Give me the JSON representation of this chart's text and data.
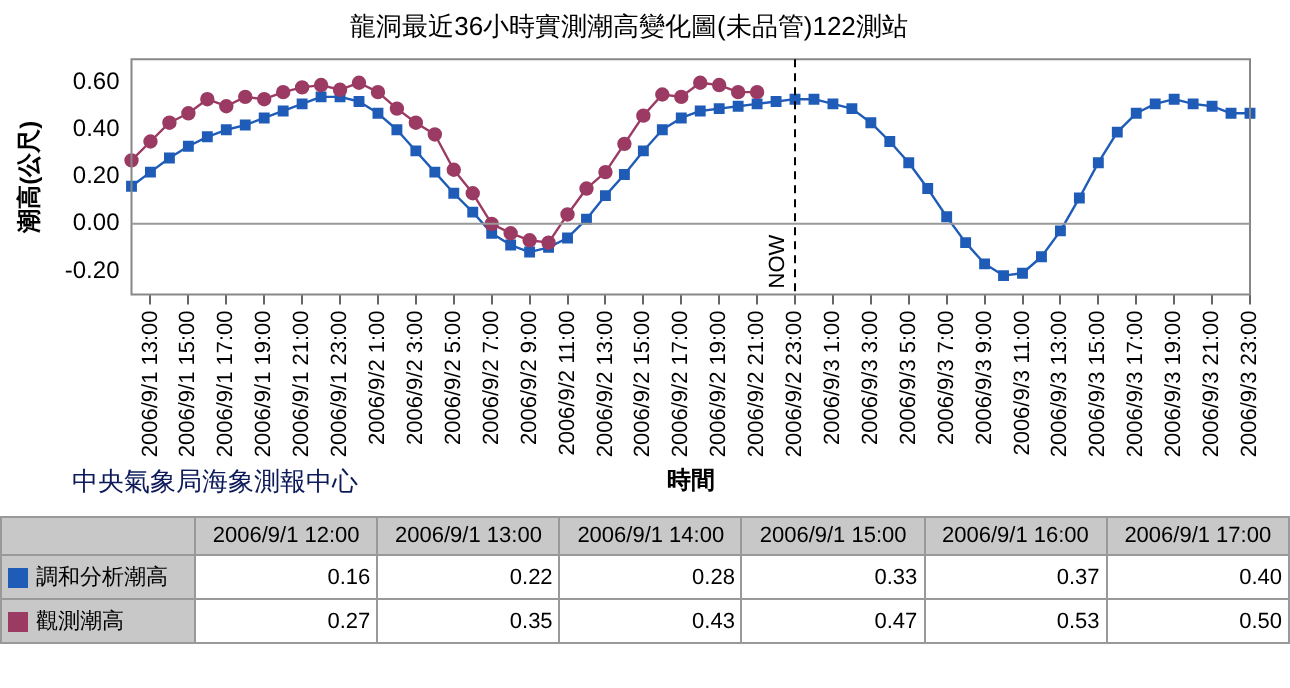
{
  "chart_data": [
    {
      "type": "line",
      "title": "龍洞最近36小時實測潮高變化圖(未品管)122測站",
      "xlabel": "時間",
      "ylabel": "潮高(公尺)",
      "annotations": [
        "中央氣象局海象測報中心"
      ],
      "categories": [
        null,
        "2006/9/1 13:00",
        null,
        "2006/9/1 15:00",
        null,
        "2006/9/1 17:00",
        null,
        "2006/9/1 19:00",
        null,
        "2006/9/1 21:00",
        null,
        "2006/9/1 23:00",
        null,
        "2006/9/2 1:00",
        null,
        "2006/9/2 3:00",
        null,
        "2006/9/2 5:00",
        null,
        "2006/9/2 7:00",
        null,
        "2006/9/2 9:00",
        null,
        "2006/9/2 11:00",
        null,
        "2006/9/2 13:00",
        null,
        "2006/9/2 15:00",
        null,
        "2006/9/2 17:00",
        null,
        "2006/9/2 19:00",
        null,
        "2006/9/2 21:00",
        null,
        "2006/9/2 23:00",
        null,
        "2006/9/3 1:00",
        null,
        "2006/9/3 3:00",
        null,
        "2006/9/3 5:00",
        null,
        "2006/9/3 7:00",
        null,
        "2006/9/3 9:00",
        null,
        "2006/9/3 11:00",
        null,
        "2006/9/3 13:00",
        null,
        "2006/9/3 15:00",
        null,
        "2006/9/3 17:00",
        null,
        "2006/9/3 19:00",
        null,
        "2006/9/3 21:00",
        null,
        "2006/9/3 23:00"
      ],
      "series": [
        {
          "name": "調和分析潮高",
          "color": "#1f5cb8",
          "marker": "square",
          "values": [
            0.16,
            0.22,
            0.28,
            0.33,
            0.37,
            0.4,
            0.42,
            0.45,
            0.48,
            0.51,
            0.54,
            0.54,
            0.52,
            0.47,
            0.4,
            0.31,
            0.22,
            0.13,
            0.05,
            -0.04,
            -0.09,
            -0.12,
            -0.1,
            -0.06,
            0.02,
            0.12,
            0.21,
            0.31,
            0.4,
            0.45,
            0.48,
            0.49,
            0.5,
            0.51,
            0.52,
            0.53,
            0.53,
            0.51,
            0.49,
            0.43,
            0.35,
            0.26,
            0.15,
            0.03,
            -0.08,
            -0.17,
            -0.22,
            -0.21,
            -0.14,
            -0.03,
            0.11,
            0.26,
            0.39,
            0.47,
            0.51,
            0.53,
            0.51,
            0.5,
            0.47,
            0.47
          ]
        },
        {
          "name": "觀測潮高",
          "color": "#9b3a63",
          "marker": "circle",
          "values": [
            0.27,
            0.35,
            0.43,
            0.47,
            0.53,
            0.5,
            0.54,
            0.53,
            0.56,
            0.58,
            0.59,
            0.57,
            0.6,
            0.56,
            0.49,
            0.43,
            0.38,
            0.23,
            0.13,
            0.0,
            -0.04,
            -0.07,
            -0.08,
            0.04,
            0.15,
            0.22,
            0.34,
            0.46,
            0.55,
            0.54,
            0.6,
            0.59,
            0.56,
            0.56,
            null,
            null,
            null,
            null,
            null,
            null,
            null,
            null,
            null,
            null,
            null,
            null,
            null,
            null,
            null,
            null,
            null,
            null,
            null,
            null,
            null,
            null,
            null,
            null,
            null,
            null
          ]
        }
      ],
      "ylim": [
        -0.3,
        0.7
      ],
      "yticks": [
        {
          "value": -0.2,
          "label": "-0.20"
        },
        {
          "value": 0,
          "label": "0.00"
        },
        {
          "value": 0.2,
          "label": "0.20"
        },
        {
          "value": 0.4,
          "label": "0.40"
        },
        {
          "value": 0.6,
          "label": "0.60"
        }
      ],
      "ref_lines": [
        {
          "axis": "y",
          "value": 0,
          "color": "#999999",
          "line_style": "solid"
        },
        {
          "axis": "x",
          "value": "2006/9/2 23:00",
          "label": "NOW",
          "color": "#000000",
          "line_style": "dashed"
        }
      ],
      "grid": false,
      "legend": "bottom"
    },
    {
      "type": "other",
      "categories": [
        "2006/9/1 12:00",
        "2006/9/1 13:00",
        "2006/9/1 14:00",
        "2006/9/1 15:00",
        "2006/9/1 16:00",
        "2006/9/1 17:00"
      ],
      "series": [
        {
          "values": [
            0.16,
            0.22,
            0.28,
            0.33,
            0.37,
            0.4
          ],
          "value_labels": [
            "0.16",
            "0.22",
            "0.28",
            "0.33",
            "0.37",
            "0.40"
          ]
        },
        {
          "values": [
            0.27,
            0.35,
            0.43,
            0.47,
            0.53,
            0.5
          ],
          "value_labels": [
            "0.27",
            "0.35",
            "0.43",
            "0.47",
            "0.53",
            "0.50"
          ]
        }
      ]
    }
  ]
}
